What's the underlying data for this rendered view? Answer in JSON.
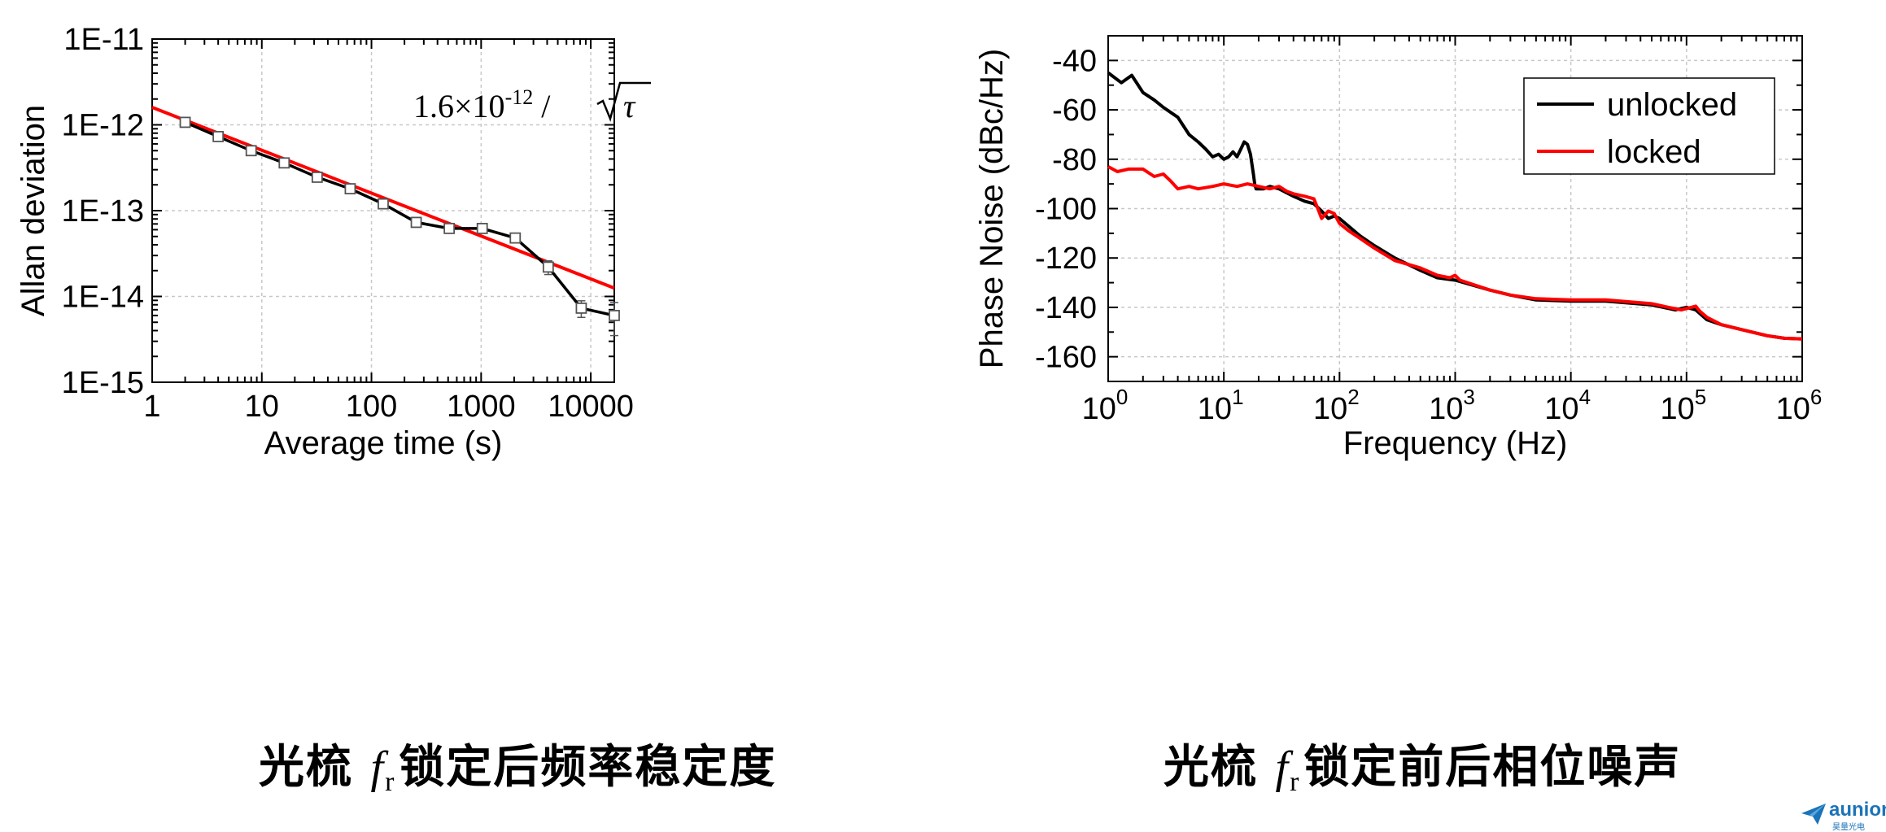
{
  "chart_data": [
    {
      "type": "line",
      "title": "",
      "xlabel": "Average time (s)",
      "ylabel": "Allan deviation",
      "xscale": "log",
      "yscale": "log",
      "xlim": [
        1,
        16384
      ],
      "ylim": [
        1e-15,
        1e-11
      ],
      "x_ticks": [
        1,
        10,
        100,
        1000,
        10000
      ],
      "x_tick_labels": [
        "1",
        "10",
        "100",
        "1000",
        "10000"
      ],
      "y_ticks": [
        1e-15,
        1e-14,
        1e-13,
        1e-12,
        1e-11
      ],
      "y_tick_labels": [
        "1E-15",
        "1E-14",
        "1E-13",
        "1E-12",
        "1E-11"
      ],
      "grid": true,
      "annotation": {
        "coef": "1.6×10",
        "exp": "-12",
        "rest": " / ",
        "tau": "τ"
      },
      "series": [
        {
          "color": "#000000",
          "marker": "square",
          "x": [
            2,
            4,
            8,
            16,
            32,
            64,
            128,
            256,
            512,
            1024,
            2048,
            4096,
            8192,
            16384
          ],
          "y": [
            1.07e-12,
            7.3e-13,
            5e-13,
            3.6e-13,
            2.45e-13,
            1.8e-13,
            1.2e-13,
            7.3e-14,
            6.2e-14,
            6.2e-14,
            4.8e-14,
            2.2e-14,
            7.3e-15,
            6e-15
          ],
          "yerr": [
            0,
            0,
            0,
            0,
            0,
            0,
            0,
            0,
            0,
            0,
            5e-15,
            4e-15,
            1.6e-15,
            2.5e-15
          ]
        },
        {
          "color": "#ff0000",
          "x": [
            1,
            16384
          ],
          "y": [
            1.6e-12,
            1.25e-14
          ]
        }
      ]
    },
    {
      "type": "line",
      "title": "",
      "xlabel": "Frequency (Hz)",
      "ylabel": "Phase Noise (dBc/Hz)",
      "xscale": "log",
      "xlim": [
        1,
        1000000
      ],
      "ylim": [
        -170,
        -30
      ],
      "x_ticks": [
        1,
        10,
        100,
        1000,
        10000,
        100000,
        1000000
      ],
      "x_tick_labels": [
        [
          "10",
          "0"
        ],
        [
          "10",
          "1"
        ],
        [
          "10",
          "2"
        ],
        [
          "10",
          "3"
        ],
        [
          "10",
          "4"
        ],
        [
          "10",
          "5"
        ],
        [
          "10",
          "6"
        ]
      ],
      "y_ticks": [
        -160,
        -140,
        -120,
        -100,
        -80,
        -60,
        -40
      ],
      "y_tick_labels": [
        "-160",
        "-140",
        "-120",
        "-100",
        "-80",
        "-60",
        "-40"
      ],
      "grid": true,
      "legend_position": "top-right",
      "series": [
        {
          "name": "unlocked",
          "color": "#000000",
          "x": [
            1,
            1.3,
            1.6,
            2,
            2.5,
            3,
            4,
            5,
            6,
            7,
            8,
            9,
            10,
            11,
            12,
            13,
            14,
            15,
            16,
            17,
            18,
            18.5,
            19,
            22,
            25,
            30,
            40,
            50,
            60,
            70,
            80,
            90,
            100,
            150,
            200,
            300,
            500,
            700,
            1000,
            2000,
            3000,
            5000,
            10000,
            20000,
            50000,
            80000,
            100000,
            120000,
            150000,
            200000,
            300000,
            500000,
            700000,
            1000000
          ],
          "y": [
            -45,
            -49,
            -46,
            -53,
            -56,
            -59,
            -63,
            -70,
            -73,
            -76,
            -79,
            -78,
            -80,
            -79,
            -77,
            -79,
            -76,
            -73,
            -74,
            -78,
            -86,
            -90,
            -92,
            -92,
            -91,
            -92,
            -95,
            -97,
            -98,
            -101,
            -104,
            -103,
            -104,
            -111,
            -115,
            -120,
            -125,
            -128,
            -129,
            -133,
            -135,
            -137,
            -137.5,
            -137.5,
            -139,
            -141,
            -140,
            -141,
            -145,
            -147,
            -149,
            -151.5,
            -152.5,
            -152.8
          ]
        },
        {
          "name": "locked",
          "color": "#ff0000",
          "x": [
            1,
            1.2,
            1.5,
            2,
            2.5,
            3,
            3.5,
            4,
            5,
            6,
            8,
            10,
            13,
            16,
            20,
            25,
            30,
            35,
            40,
            50,
            60,
            65,
            70,
            80,
            90,
            100,
            120,
            150,
            200,
            300,
            500,
            700,
            900,
            1000,
            1100,
            2000,
            3000,
            5000,
            10000,
            20000,
            50000,
            70000,
            90000,
            110000,
            120000,
            130000,
            150000,
            200000,
            300000,
            500000,
            700000,
            1000000
          ],
          "y": [
            -83,
            -85,
            -84,
            -84,
            -87,
            -86,
            -89,
            -92,
            -91,
            -92,
            -91,
            -90,
            -91,
            -90,
            -91,
            -92,
            -91,
            -93,
            -94,
            -95,
            -96,
            -100,
            -104,
            -101,
            -102,
            -106,
            -109,
            -112,
            -116,
            -121,
            -124,
            -127,
            -128,
            -127,
            -129,
            -133,
            -135,
            -136.5,
            -137,
            -137,
            -138.5,
            -140,
            -141,
            -140,
            -139.5,
            -141.5,
            -144,
            -147,
            -149,
            -151.5,
            -152.5,
            -152.8
          ]
        }
      ]
    }
  ],
  "captions": {
    "left": {
      "pre": "光梳 ",
      "sym": "f",
      "sub": "r",
      "post": "锁定后频率稳定度"
    },
    "right": {
      "pre": "光梳 ",
      "sym": "f",
      "sub": "r",
      "post": "锁定前后相位噪声"
    }
  },
  "logo": {
    "text": "aunion",
    "sub": "昊量光电"
  }
}
